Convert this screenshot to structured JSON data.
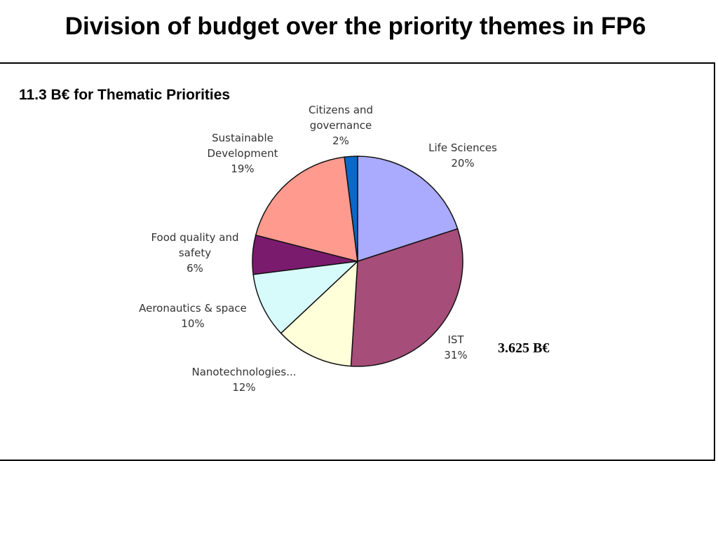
{
  "slide": {
    "title": "Division of budget over the priority themes in FP6",
    "subtitle": "11.3 B€ for Thematic Priorities",
    "ist_amount": "3.625 B€"
  },
  "chart_data": {
    "type": "pie",
    "title": "",
    "slices": [
      {
        "label": [
          "Life Sciences",
          "20%"
        ],
        "value": 20,
        "color": "#aaaaff"
      },
      {
        "label": [
          "IST",
          "31%"
        ],
        "value": 31,
        "color": "#a64d79"
      },
      {
        "label": [
          "Nanotechnologies...",
          "12%"
        ],
        "value": 12,
        "color": "#ffffd9"
      },
      {
        "label": [
          "Aeronautics & space",
          "10%"
        ],
        "value": 10,
        "color": "#d7fbfb"
      },
      {
        "label": [
          "Food quality and",
          "safety",
          "6%"
        ],
        "value": 6,
        "color": "#7b1b6e"
      },
      {
        "label": [
          "Sustainable",
          "Development",
          "19%"
        ],
        "value": 19,
        "color": "#ff9a8f"
      },
      {
        "label": [
          "Citizens and",
          "governance",
          "2%"
        ],
        "value": 2,
        "color": "#0a68c8"
      }
    ]
  }
}
